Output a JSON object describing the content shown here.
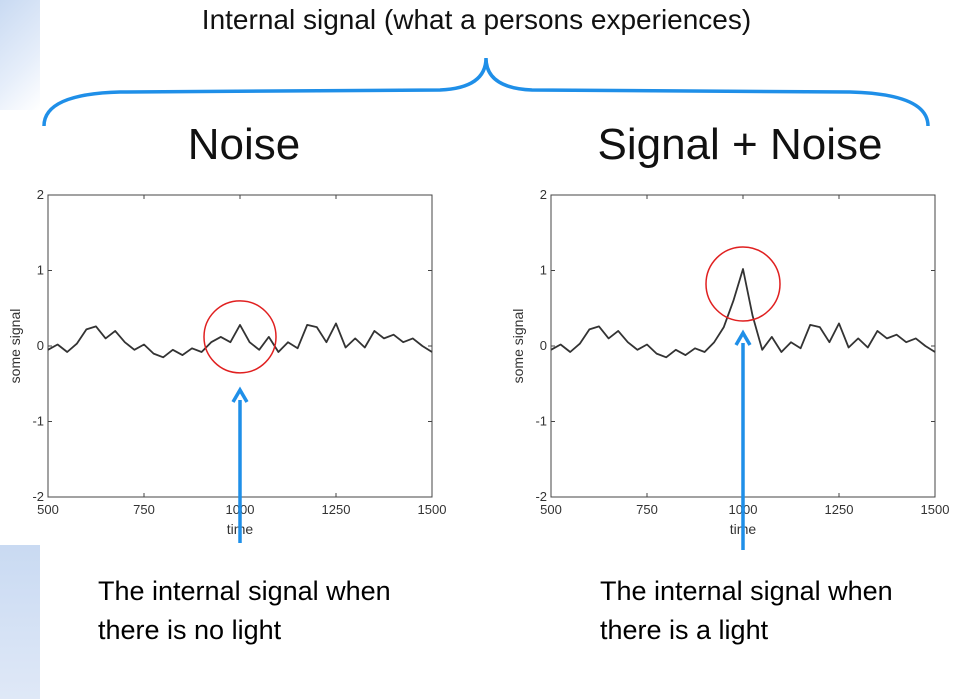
{
  "header": {
    "text": "Internal signal (what a persons experiences)"
  },
  "colors": {
    "brace": "#1f8fe8",
    "arrow": "#1f8fe8",
    "circle": "#e02020",
    "line": "#333333"
  },
  "panels": [
    {
      "title": "Noise",
      "caption": "The internal signal when there is no light"
    },
    {
      "title": "Signal + Noise",
      "caption": "The internal signal when there is a light"
    }
  ],
  "chart_data": [
    {
      "type": "line",
      "title": "Noise",
      "xlabel": "time",
      "ylabel": "some signal",
      "xlim": [
        500,
        1500
      ],
      "ylim": [
        -2,
        2
      ],
      "xticks": [
        500,
        750,
        1000,
        1250,
        1500
      ],
      "yticks": [
        -2,
        -1,
        0,
        1,
        2
      ],
      "xtick_labels": [
        "500",
        "750",
        "1000",
        "1250",
        "1500"
      ],
      "ytick_labels": [
        "-2",
        "-1",
        "0",
        "1",
        "2"
      ],
      "annotation": {
        "type": "circle",
        "x": 1000
      },
      "x": [
        500,
        525,
        550,
        575,
        600,
        625,
        650,
        675,
        700,
        725,
        750,
        775,
        800,
        825,
        850,
        875,
        900,
        925,
        950,
        975,
        1000,
        1025,
        1050,
        1075,
        1100,
        1125,
        1150,
        1175,
        1200,
        1225,
        1250,
        1275,
        1300,
        1325,
        1350,
        1375,
        1400,
        1425,
        1450,
        1475,
        1500
      ],
      "values": [
        -0.05,
        0.02,
        -0.08,
        0.03,
        0.22,
        0.26,
        0.1,
        0.2,
        0.05,
        -0.05,
        0.02,
        -0.1,
        -0.15,
        -0.05,
        -0.12,
        -0.03,
        -0.08,
        0.05,
        0.12,
        0.05,
        0.28,
        0.05,
        -0.05,
        0.12,
        -0.08,
        0.05,
        -0.03,
        0.28,
        0.25,
        0.05,
        0.3,
        -0.02,
        0.1,
        -0.02,
        0.2,
        0.1,
        0.15,
        0.05,
        0.1,
        0.0,
        -0.08
      ]
    },
    {
      "type": "line",
      "title": "Signal + Noise",
      "xlabel": "time",
      "ylabel": "some signal",
      "xlim": [
        500,
        1500
      ],
      "ylim": [
        -2,
        2
      ],
      "xticks": [
        500,
        750,
        1000,
        1250,
        1500
      ],
      "yticks": [
        -2,
        -1,
        0,
        1,
        2
      ],
      "xtick_labels": [
        "500",
        "750",
        "1000",
        "1250",
        "1500"
      ],
      "ytick_labels": [
        "-2",
        "-1",
        "0",
        "1",
        "2"
      ],
      "annotation": {
        "type": "circle",
        "x": 1000
      },
      "x": [
        500,
        525,
        550,
        575,
        600,
        625,
        650,
        675,
        700,
        725,
        750,
        775,
        800,
        825,
        850,
        875,
        900,
        925,
        950,
        975,
        1000,
        1025,
        1050,
        1075,
        1100,
        1125,
        1150,
        1175,
        1200,
        1225,
        1250,
        1275,
        1300,
        1325,
        1350,
        1375,
        1400,
        1425,
        1450,
        1475,
        1500
      ],
      "values": [
        -0.05,
        0.02,
        -0.08,
        0.03,
        0.22,
        0.26,
        0.1,
        0.2,
        0.05,
        -0.05,
        0.02,
        -0.1,
        -0.15,
        -0.05,
        -0.12,
        -0.03,
        -0.08,
        0.05,
        0.25,
        0.6,
        1.02,
        0.4,
        -0.05,
        0.12,
        -0.08,
        0.05,
        -0.03,
        0.28,
        0.25,
        0.05,
        0.3,
        -0.02,
        0.1,
        -0.02,
        0.2,
        0.1,
        0.15,
        0.05,
        0.1,
        0.0,
        -0.08
      ]
    }
  ]
}
